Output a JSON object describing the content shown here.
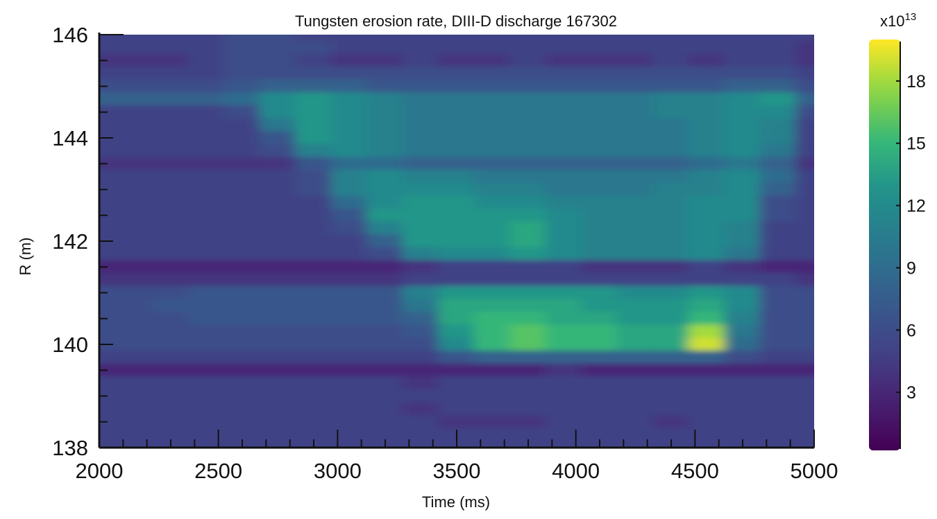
{
  "chart_data": {
    "type": "heatmap",
    "title": "Tungsten erosion rate, DIII-D discharge 167302",
    "xlabel": "Time (ms)",
    "ylabel": "R (m)",
    "xlim": [
      2000,
      5000
    ],
    "ylim": [
      138,
      146
    ],
    "x_ticks": [
      2000,
      2500,
      3000,
      3500,
      4000,
      4500,
      5000
    ],
    "y_ticks": [
      138,
      140,
      142,
      144,
      146
    ],
    "colormap": "viridis",
    "colorbar": {
      "multiplier": "x10",
      "exponent": "13",
      "range": [
        0.2,
        20
      ],
      "ticks": [
        3,
        6,
        9,
        12,
        15,
        18
      ]
    },
    "x": [
      2000,
      2150,
      2300,
      2450,
      2600,
      2750,
      2900,
      3050,
      3200,
      3350,
      3500,
      3650,
      3800,
      3950,
      4100,
      4250,
      4400,
      4550,
      4700,
      4850,
      5000
    ],
    "y": [
      146,
      145.75,
      145.5,
      145.25,
      145,
      144.75,
      144.5,
      144.25,
      144,
      143.75,
      143.5,
      143.25,
      143,
      142.75,
      142.5,
      142.25,
      142,
      141.75,
      141.5,
      141.25,
      141,
      140.75,
      140.5,
      140.25,
      140,
      139.75,
      139.5,
      139.25,
      139,
      138.75,
      138.5,
      138.25,
      138
    ],
    "values": [
      [
        5,
        5,
        5,
        5,
        6,
        6,
        5,
        5,
        5,
        5,
        5,
        5,
        5,
        5,
        5,
        5,
        5,
        5,
        5,
        5,
        5
      ],
      [
        5,
        5,
        5,
        5,
        6,
        6,
        6,
        5,
        5,
        5,
        5,
        5,
        5,
        5,
        5,
        5,
        5,
        5,
        5,
        5,
        4
      ],
      [
        4,
        4,
        4,
        5,
        6,
        6,
        5,
        4,
        4,
        5,
        4,
        4,
        5,
        4,
        4,
        4,
        5,
        4,
        5,
        5,
        4
      ],
      [
        5,
        5,
        5,
        5,
        6,
        6,
        6,
        6,
        6,
        6,
        6,
        6,
        6,
        6,
        6,
        6,
        6,
        6,
        6,
        6,
        5
      ],
      [
        6,
        6,
        6,
        6,
        7,
        8,
        8,
        8,
        7,
        7,
        7,
        7,
        7,
        7,
        7,
        7,
        7,
        7,
        8,
        8,
        6
      ],
      [
        8,
        8,
        8,
        8,
        9,
        12,
        13,
        12,
        11,
        10,
        10,
        10,
        10,
        10,
        10,
        10,
        11,
        11,
        12,
        13,
        8
      ],
      [
        5,
        5,
        5,
        5,
        6,
        12,
        13,
        12,
        11,
        10,
        10,
        10,
        10,
        10,
        10,
        10,
        11,
        11,
        12,
        12,
        6
      ],
      [
        5,
        5,
        5,
        5,
        5,
        10,
        13,
        12,
        11,
        10,
        10,
        10,
        10,
        10,
        10,
        10,
        10,
        11,
        12,
        11,
        5
      ],
      [
        5,
        5,
        5,
        5,
        5,
        7,
        13,
        12,
        11,
        10,
        10,
        10,
        10,
        10,
        10,
        10,
        10,
        11,
        12,
        11,
        5
      ],
      [
        5,
        5,
        5,
        5,
        5,
        6,
        11,
        12,
        11,
        10,
        10,
        10,
        10,
        10,
        10,
        10,
        10,
        11,
        12,
        10,
        5
      ],
      [
        4,
        4,
        4,
        4,
        4,
        4,
        7,
        9,
        9,
        8,
        8,
        8,
        8,
        8,
        8,
        8,
        8,
        9,
        10,
        8,
        4
      ],
      [
        5,
        5,
        5,
        5,
        5,
        5,
        6,
        11,
        12,
        11,
        11,
        10,
        10,
        10,
        10,
        10,
        10,
        11,
        12,
        9,
        5
      ],
      [
        5,
        5,
        5,
        5,
        5,
        5,
        6,
        11,
        12,
        12,
        12,
        11,
        11,
        10,
        10,
        10,
        11,
        11,
        12,
        8,
        5
      ],
      [
        5,
        5,
        5,
        5,
        5,
        5,
        5,
        9,
        12,
        13,
        13,
        12,
        12,
        11,
        11,
        11,
        11,
        12,
        12,
        6,
        5
      ],
      [
        5,
        5,
        5,
        5,
        5,
        5,
        5,
        7,
        13,
        13,
        13,
        13,
        13,
        12,
        11,
        11,
        11,
        12,
        12,
        6,
        5
      ],
      [
        5,
        5,
        5,
        5,
        5,
        5,
        5,
        6,
        11,
        13,
        13,
        13,
        14,
        12,
        11,
        11,
        11,
        12,
        11,
        5,
        5
      ],
      [
        5,
        5,
        5,
        5,
        5,
        5,
        5,
        5,
        8,
        13,
        13,
        13,
        14,
        12,
        11,
        11,
        11,
        12,
        11,
        5,
        5
      ],
      [
        5,
        5,
        5,
        5,
        5,
        5,
        5,
        5,
        6,
        11,
        12,
        12,
        13,
        12,
        11,
        11,
        11,
        12,
        10,
        5,
        5
      ],
      [
        3,
        3,
        3,
        3,
        3,
        3,
        3,
        3,
        3,
        4,
        5,
        5,
        5,
        5,
        4,
        4,
        4,
        5,
        4,
        3,
        3
      ],
      [
        4,
        4,
        4,
        4,
        4,
        4,
        4,
        4,
        4,
        5,
        5,
        5,
        5,
        5,
        5,
        5,
        5,
        5,
        5,
        5,
        4
      ],
      [
        6,
        6,
        6,
        7,
        7,
        7,
        7,
        7,
        7,
        11,
        13,
        13,
        13,
        13,
        13,
        12,
        12,
        13,
        12,
        6,
        6
      ],
      [
        6,
        6,
        7,
        7,
        7,
        7,
        7,
        7,
        7,
        10,
        14,
        14,
        14,
        14,
        13,
        13,
        13,
        14,
        12,
        6,
        6
      ],
      [
        6,
        6,
        6,
        7,
        7,
        7,
        7,
        7,
        7,
        8,
        14,
        15,
        15,
        14,
        14,
        13,
        13,
        15,
        11,
        6,
        6
      ],
      [
        6,
        6,
        6,
        6,
        6,
        6,
        6,
        6,
        6,
        7,
        13,
        15,
        16,
        15,
        15,
        14,
        14,
        18,
        10,
        6,
        6
      ],
      [
        6,
        6,
        6,
        6,
        6,
        6,
        6,
        6,
        6,
        6,
        12,
        15,
        16,
        15,
        15,
        14,
        14,
        19,
        9,
        6,
        6
      ],
      [
        5,
        5,
        5,
        5,
        5,
        5,
        5,
        5,
        5,
        5,
        7,
        8,
        8,
        8,
        8,
        8,
        8,
        8,
        6,
        5,
        5
      ],
      [
        3,
        3,
        3,
        3,
        3,
        3,
        3,
        3,
        3,
        3,
        3,
        3,
        3,
        4,
        3,
        3,
        3,
        3,
        3,
        3,
        3
      ],
      [
        5,
        5,
        5,
        5,
        5,
        5,
        5,
        5,
        5,
        4,
        5,
        5,
        5,
        5,
        5,
        5,
        5,
        5,
        5,
        5,
        5
      ],
      [
        5,
        5,
        5,
        5,
        5,
        5,
        5,
        5,
        5,
        5,
        5,
        5,
        5,
        5,
        5,
        5,
        5,
        5,
        5,
        5,
        5
      ],
      [
        5,
        5,
        5,
        5,
        5,
        5,
        5,
        5,
        5,
        4,
        5,
        5,
        5,
        5,
        5,
        5,
        5,
        5,
        5,
        5,
        5
      ],
      [
        5,
        5,
        5,
        5,
        5,
        5,
        5,
        5,
        5,
        5,
        4,
        4,
        4,
        5,
        5,
        5,
        4,
        5,
        5,
        5,
        5
      ],
      [
        5,
        5,
        5,
        5,
        5,
        5,
        5,
        5,
        5,
        5,
        5,
        5,
        5,
        5,
        5,
        5,
        5,
        5,
        5,
        5,
        5
      ],
      [
        5,
        5,
        5,
        5,
        5,
        5,
        5,
        5,
        5,
        5,
        5,
        5,
        5,
        5,
        5,
        5,
        5,
        5,
        5,
        5,
        5
      ]
    ]
  }
}
